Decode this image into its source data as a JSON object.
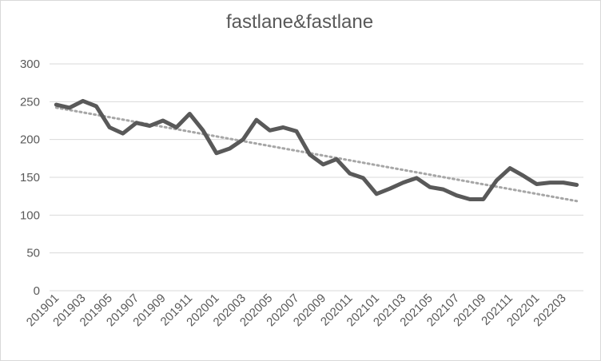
{
  "chart_data": {
    "type": "line",
    "title": "fastlane&fastlane",
    "xlabel": "",
    "ylabel": "",
    "ylim": [
      0,
      300
    ],
    "yticks": [
      0,
      50,
      100,
      150,
      200,
      250,
      300
    ],
    "grid": true,
    "legend": "none",
    "x": [
      "201901",
      "201902",
      "201903",
      "201904",
      "201905",
      "201906",
      "201907",
      "201908",
      "201909",
      "201910",
      "201911",
      "201912",
      "202001",
      "202002",
      "202003",
      "202004",
      "202005",
      "202006",
      "202007",
      "202008",
      "202009",
      "202010",
      "202011",
      "202012",
      "202101",
      "202102",
      "202103",
      "202104",
      "202105",
      "202106",
      "202107",
      "202108",
      "202109",
      "202110",
      "202111",
      "202112",
      "202201",
      "202202",
      "202203",
      "202204"
    ],
    "xtick_labels": [
      "201901",
      "201903",
      "201905",
      "201907",
      "201909",
      "201911",
      "202001",
      "202003",
      "202005",
      "202007",
      "202009",
      "202011",
      "202101",
      "202103",
      "202105",
      "202107",
      "202109",
      "202111",
      "202201",
      "202203"
    ],
    "series": [
      {
        "values": [
          246,
          242,
          251,
          244,
          216,
          208,
          222,
          218,
          225,
          216,
          234,
          212,
          182,
          188,
          200,
          226,
          212,
          216,
          211,
          180,
          167,
          174,
          155,
          149,
          128,
          135,
          143,
          149,
          137,
          134,
          126,
          121,
          121,
          146,
          162,
          152,
          141,
          143,
          143,
          140
        ],
        "color": "#595959"
      }
    ],
    "trendline": {
      "type": "linear",
      "color": "#a6a6a6"
    },
    "colors": {
      "grid": "#d9d9d9",
      "text": "#595959",
      "line": "#595959",
      "trend": "#a6a6a6"
    }
  }
}
